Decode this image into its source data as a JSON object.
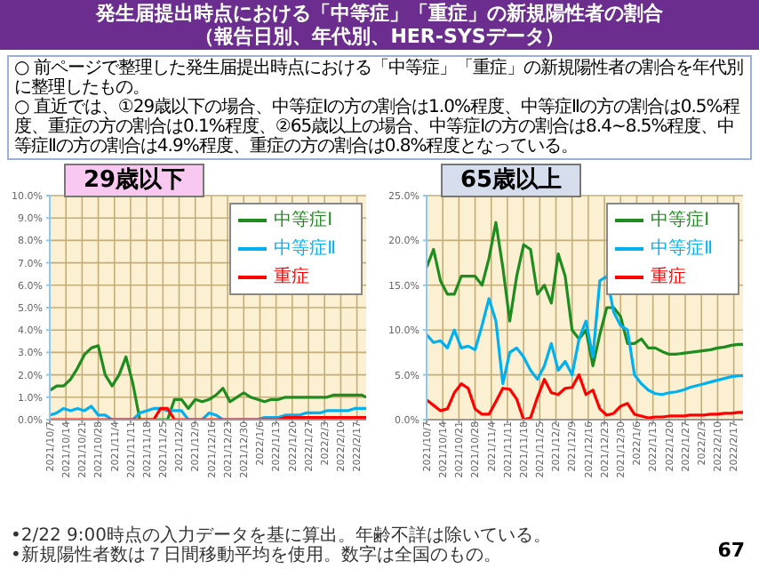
{
  "chart_data": [
    {
      "type": "line",
      "title": "29歳以下",
      "annotations": [
        "発生届提出時点における「中等症」「重症」の新規陽性者の割合",
        "（報告日別、年代別、HER-SYSデータ）",
        "○ 前ページで整理した発生届提出時点における「中等症」「重症」の新規陽性者の割合を年代別に整理したもの。",
        "○ 直近では、①29歳以下の場合、中等症Ⅰの方の割合は1.0%程度、中等症Ⅱの方の割合は0.5%程度、重症の方の割合は0.1%程度、②65歳以上の場合、中等症Ⅰの方の割合は8.4~8.5%程度、中等症Ⅱの方の割合は4.9%程度、重症の方の割合は0.8%程度となっている。",
        "•2/22 9:00時点の入力データを基に算出。年齢不詳は除いている。",
        "•新規陽性者数は７日間移動平均を使用。数字は全国のもの。",
        "67"
      ],
      "x": [
        "2021-10-07",
        "2021-10-10",
        "2021-10-13",
        "2021-10-16",
        "2021-10-19",
        "2021-10-22",
        "2021-10-25",
        "2021-10-28",
        "2021-10-31",
        "2021-11-03",
        "2021-11-06",
        "2021-11-09",
        "2021-11-12",
        "2021-11-15",
        "2021-11-18",
        "2021-11-21",
        "2021-11-24",
        "2021-11-27",
        "2021-11-30",
        "2021-12-03",
        "2021-12-06",
        "2021-12-09",
        "2021-12-12",
        "2021-12-15",
        "2021-12-18",
        "2021-12-21",
        "2021-12-24",
        "2021-12-27",
        "2021-12-30",
        "2022-01-02",
        "2022-01-05",
        "2022-01-08",
        "2022-01-11",
        "2022-01-14",
        "2022-01-17",
        "2022-01-20",
        "2022-01-23",
        "2022-01-26",
        "2022-01-29",
        "2022-02-01",
        "2022-02-04",
        "2022-02-07",
        "2022-02-10",
        "2022-02-13",
        "2022-02-16",
        "2022-02-19",
        "2022-02-21"
      ],
      "series": [
        {
          "name": "中等症Ⅰ",
          "color": "#1e8c1e",
          "values": [
            1.3,
            1.5,
            1.5,
            1.8,
            2.3,
            2.9,
            3.2,
            3.3,
            2.0,
            1.5,
            2.0,
            2.8,
            1.6,
            0,
            0,
            0,
            0,
            0,
            0.9,
            0.9,
            0.5,
            0.9,
            0.8,
            0.9,
            1.1,
            1.4,
            0.8,
            1.0,
            1.2,
            1.0,
            0.9,
            0.8,
            0.9,
            0.9,
            1.0,
            1.0,
            1.0,
            1.0,
            1.0,
            1.0,
            1.0,
            1.1,
            1.1,
            1.1,
            1.1,
            1.1,
            1.0
          ]
        },
        {
          "name": "中等症Ⅱ",
          "color": "#00b0f0",
          "values": [
            0.2,
            0.3,
            0.5,
            0.4,
            0.5,
            0.4,
            0.6,
            0.2,
            0.2,
            0,
            0,
            0,
            0,
            0.3,
            0.4,
            0.5,
            0.5,
            0.4,
            0.4,
            0.4,
            0,
            0,
            0,
            0.3,
            0.2,
            0,
            0,
            0,
            0,
            0,
            0,
            0.1,
            0.1,
            0.1,
            0.2,
            0.2,
            0.2,
            0.3,
            0.3,
            0.3,
            0.4,
            0.4,
            0.4,
            0.4,
            0.5,
            0.5,
            0.5
          ]
        },
        {
          "name": "重症",
          "color": "#ff0000",
          "values": [
            0,
            0,
            0,
            0,
            0,
            0,
            0,
            0,
            0,
            0,
            0,
            0,
            0,
            0,
            0,
            0,
            0.5,
            0.5,
            0,
            0,
            0,
            0,
            0,
            0,
            0,
            0,
            0,
            0,
            0,
            0,
            0,
            0,
            0,
            0,
            0.1,
            0.1,
            0.1,
            0.1,
            0.1,
            0.1,
            0.1,
            0.1,
            0.1,
            0.1,
            0.1,
            0.1,
            0.1
          ]
        }
      ],
      "xlim": [
        "2021-10-07",
        "2022-02-21"
      ],
      "xticks": [
        {
          "value": "2021-10-07",
          "label": "2021/10/7"
        },
        {
          "value": "2021-10-14",
          "label": "2021/10/14"
        },
        {
          "value": "2021-10-21",
          "label": "2021/10/21"
        },
        {
          "value": "2021-10-28",
          "label": "2021/10/28"
        },
        {
          "value": "2021-11-04",
          "label": "2021/11/4"
        },
        {
          "value": "2021-11-11",
          "label": "2021/11/11"
        },
        {
          "value": "2021-11-18",
          "label": "2021/11/18"
        },
        {
          "value": "2021-11-25",
          "label": "2021/11/25"
        },
        {
          "value": "2021-12-02",
          "label": "2021/12/2"
        },
        {
          "value": "2021-12-09",
          "label": "2021/12/9"
        },
        {
          "value": "2021-12-16",
          "label": "2021/12/16"
        },
        {
          "value": "2021-12-23",
          "label": "2021/12/23"
        },
        {
          "value": "2021-12-30",
          "label": "2021/12/30"
        },
        {
          "value": "2022-01-06",
          "label": "2022/1/6"
        },
        {
          "value": "2022-01-13",
          "label": "2022/1/13"
        },
        {
          "value": "2022-01-20",
          "label": "2022/1/20"
        },
        {
          "value": "2022-01-27",
          "label": "2022/1/27"
        },
        {
          "value": "2022-02-03",
          "label": "2022/2/3"
        },
        {
          "value": "2022-02-10",
          "label": "2022/2/10"
        },
        {
          "value": "2022-02-17",
          "label": "2022/2/17"
        }
      ],
      "ylim": [
        0,
        10
      ],
      "yticks": [
        {
          "value": 0,
          "label": "0.0%"
        },
        {
          "value": 1,
          "label": "1.0%"
        },
        {
          "value": 2,
          "label": "2.0%"
        },
        {
          "value": 3,
          "label": "3.0%"
        },
        {
          "value": 4,
          "label": "4.0%"
        },
        {
          "value": 5,
          "label": "5.0%"
        },
        {
          "value": 6,
          "label": "6.0%"
        },
        {
          "value": 7,
          "label": "7.0%"
        },
        {
          "value": 8,
          "label": "8.0%"
        },
        {
          "value": 9,
          "label": "9.0%"
        },
        {
          "value": 10,
          "label": "10.0%"
        }
      ],
      "grid": true,
      "legend": "top right"
    },
    {
      "type": "line",
      "title": "65歳以上",
      "x": [
        "2021-10-07",
        "2021-10-10",
        "2021-10-13",
        "2021-10-16",
        "2021-10-19",
        "2021-10-22",
        "2021-10-25",
        "2021-10-28",
        "2021-10-31",
        "2021-11-03",
        "2021-11-06",
        "2021-11-09",
        "2021-11-12",
        "2021-11-15",
        "2021-11-18",
        "2021-11-21",
        "2021-11-24",
        "2021-11-27",
        "2021-11-30",
        "2021-12-03",
        "2021-12-06",
        "2021-12-09",
        "2021-12-12",
        "2021-12-15",
        "2021-12-18",
        "2021-12-21",
        "2021-12-24",
        "2021-12-27",
        "2021-12-30",
        "2022-01-02",
        "2022-01-05",
        "2022-01-08",
        "2022-01-11",
        "2022-01-14",
        "2022-01-17",
        "2022-01-20",
        "2022-01-23",
        "2022-01-26",
        "2022-01-29",
        "2022-02-01",
        "2022-02-04",
        "2022-02-07",
        "2022-02-10",
        "2022-02-13",
        "2022-02-16",
        "2022-02-19",
        "2022-02-21"
      ],
      "series": [
        {
          "name": "中等症Ⅰ",
          "color": "#1e8c1e",
          "values": [
            17,
            19,
            15.5,
            14,
            14,
            16,
            16,
            16,
            15,
            18,
            22,
            17,
            11,
            16,
            19.5,
            19,
            14,
            15,
            13,
            18.5,
            16,
            10,
            9,
            10,
            6,
            9.5,
            12.5,
            12.5,
            11.5,
            8.5,
            8.5,
            9,
            8,
            8,
            7.6,
            7.3,
            7.3,
            7.4,
            7.5,
            7.6,
            7.7,
            7.8,
            8.0,
            8.1,
            8.3,
            8.4,
            8.4
          ]
        },
        {
          "name": "中等症Ⅱ",
          "color": "#00b0f0",
          "values": [
            9.5,
            8.6,
            8.8,
            8,
            10,
            8,
            8.2,
            7.8,
            10.5,
            13.5,
            11,
            4,
            7.5,
            8,
            7,
            5.5,
            4.5,
            6,
            8.5,
            5.5,
            6.5,
            5,
            9,
            11,
            7,
            15.5,
            16,
            12,
            10.5,
            10,
            5,
            4,
            3.3,
            2.9,
            2.8,
            3.0,
            3.1,
            3.3,
            3.6,
            3.8,
            4.0,
            4.2,
            4.4,
            4.6,
            4.8,
            4.9,
            4.9
          ]
        },
        {
          "name": "重症",
          "color": "#ff0000",
          "values": [
            2.2,
            1.6,
            1.0,
            1.2,
            3.0,
            4,
            3.5,
            1.2,
            0.6,
            0.6,
            2.0,
            3.5,
            3.4,
            2.3,
            0,
            0.2,
            2.5,
            4.5,
            3.0,
            2.8,
            3.5,
            3.6,
            5.0,
            2.8,
            3.3,
            1.2,
            0.5,
            0.7,
            1.5,
            1.8,
            0.6,
            0.4,
            0.2,
            0.3,
            0.3,
            0.4,
            0.4,
            0.4,
            0.5,
            0.5,
            0.5,
            0.6,
            0.6,
            0.7,
            0.7,
            0.8,
            0.8
          ]
        }
      ],
      "xlim": [
        "2021-10-07",
        "2022-02-21"
      ],
      "xticks": [
        {
          "value": "2021-10-07",
          "label": "2021/10/7"
        },
        {
          "value": "2021-10-14",
          "label": "2021/10/14"
        },
        {
          "value": "2021-10-21",
          "label": "2021/10/21"
        },
        {
          "value": "2021-10-28",
          "label": "2021/10/28"
        },
        {
          "value": "2021-11-04",
          "label": "2021/11/4"
        },
        {
          "value": "2021-11-11",
          "label": "2021/11/11"
        },
        {
          "value": "2021-11-18",
          "label": "2021/11/18"
        },
        {
          "value": "2021-11-25",
          "label": "2021/11/25"
        },
        {
          "value": "2021-12-02",
          "label": "2021/12/2"
        },
        {
          "value": "2021-12-09",
          "label": "2021/12/9"
        },
        {
          "value": "2021-12-16",
          "label": "2021/12/16"
        },
        {
          "value": "2021-12-23",
          "label": "2021/12/23"
        },
        {
          "value": "2021-12-30",
          "label": "2021/12/30"
        },
        {
          "value": "2022-01-06",
          "label": "2022/1/6"
        },
        {
          "value": "2022-01-13",
          "label": "2022/1/13"
        },
        {
          "value": "2022-01-20",
          "label": "2022/1/20"
        },
        {
          "value": "2022-01-27",
          "label": "2022/1/27"
        },
        {
          "value": "2022-02-03",
          "label": "2022/2/3"
        },
        {
          "value": "2022-02-10",
          "label": "2022/2/10"
        },
        {
          "value": "2022-02-17",
          "label": "2022/2/17"
        }
      ],
      "ylim": [
        0,
        25
      ],
      "yticks": [
        {
          "value": 0,
          "label": "0.0%"
        },
        {
          "value": 5,
          "label": "5.0%"
        },
        {
          "value": 10,
          "label": "10.0%"
        },
        {
          "value": 15,
          "label": "15.0%"
        },
        {
          "value": 20,
          "label": "20.0%"
        },
        {
          "value": 25,
          "label": "25.0%"
        }
      ],
      "grid": true,
      "legend": "top right"
    }
  ]
}
